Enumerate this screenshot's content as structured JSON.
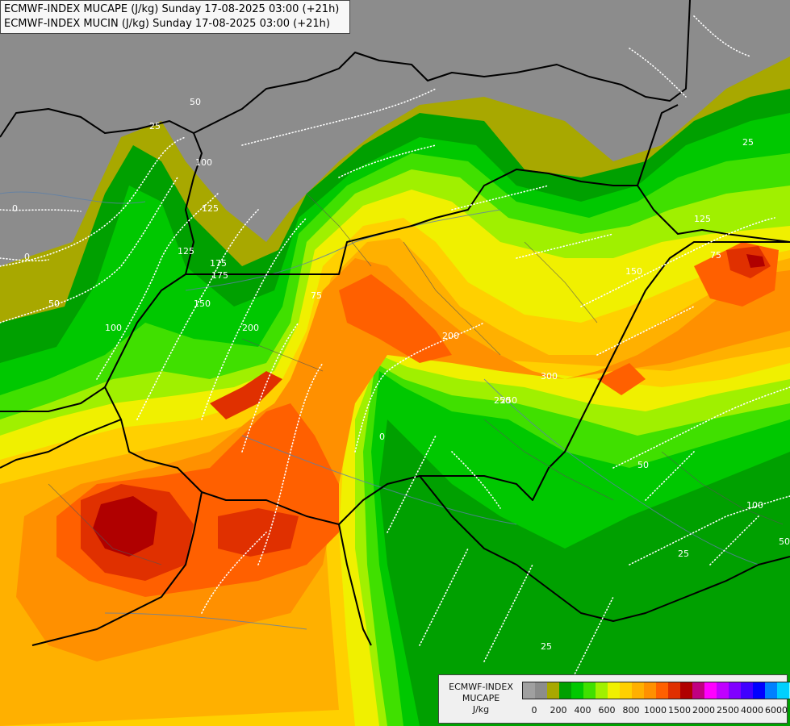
{
  "header": {
    "line1": "ECMWF-INDEX MUCAPE (J/kg) Sunday 17-08-2025 03:00 (+21h)",
    "line2": "ECMWF-INDEX MUCIN (J/kg) Sunday 17-08-2025 03:00 (+21h)"
  },
  "legend": {
    "source": "ECMWF-INDEX",
    "variable": "MUCAPE",
    "unit": "J/kg",
    "colors": [
      "#a0a0a0",
      "#8c8c8c",
      "#a8a800",
      "#00a000",
      "#00c800",
      "#40e000",
      "#a0f000",
      "#f0f000",
      "#ffd000",
      "#ffb000",
      "#ff9000",
      "#ff6000",
      "#e03000",
      "#b00000",
      "#c00080",
      "#ff00ff",
      "#c000ff",
      "#8000ff",
      "#4000ff",
      "#0000ff",
      "#0080ff",
      "#00d0ff",
      "#80ffff",
      "#ffffff"
    ],
    "ticks": [
      "0",
      "200",
      "400",
      "600",
      "800",
      "1000",
      "1500",
      "2000",
      "2500",
      "4000",
      "6000"
    ]
  },
  "contour_labels": [
    "50",
    "25",
    "100",
    "0",
    "125",
    "175",
    "150",
    "200",
    "250",
    "300",
    "75",
    "25",
    "50",
    "0",
    "100",
    "125",
    "175",
    "200",
    "250",
    "25",
    "50",
    "75",
    "100",
    "125",
    "150",
    "0",
    "50",
    "25"
  ]
}
